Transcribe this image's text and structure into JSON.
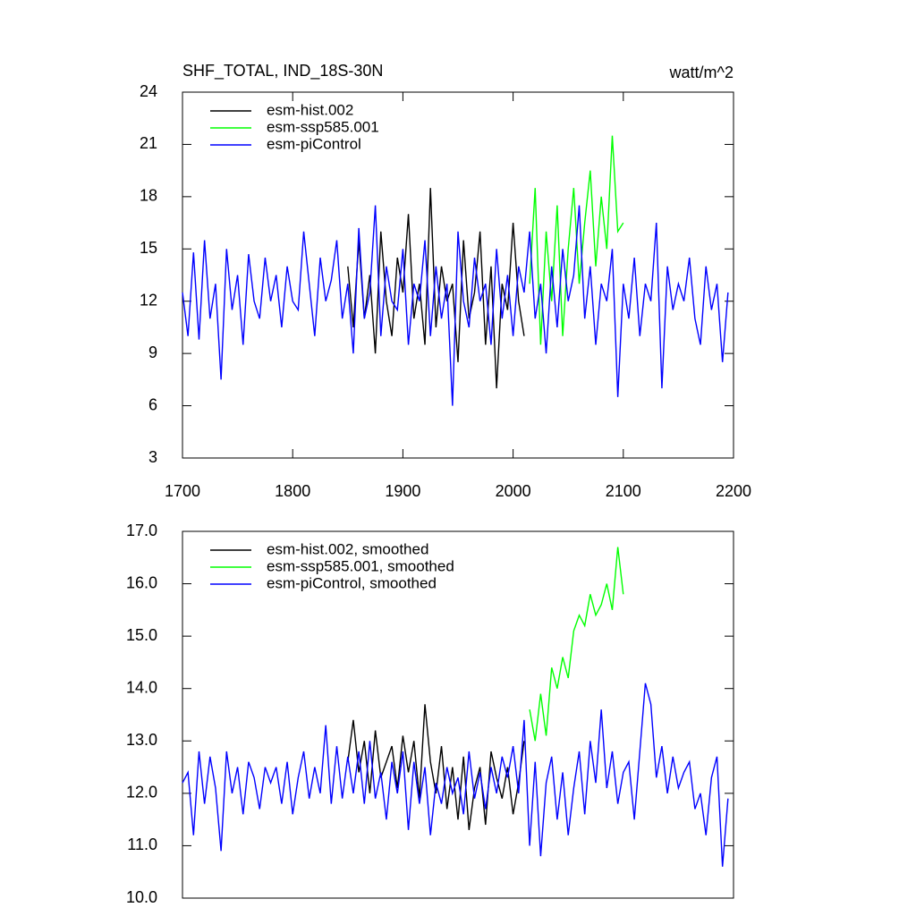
{
  "chart_data": [
    {
      "type": "line",
      "title": "SHF_TOTAL, IND_18S-30N",
      "units": "watt/m^2",
      "xlim": [
        1700,
        2200
      ],
      "xticks": [
        1700,
        1800,
        1900,
        2000,
        2100,
        2200
      ],
      "ylim": [
        3,
        24
      ],
      "yticks": [
        3,
        6,
        9,
        12,
        15,
        18,
        21,
        24
      ],
      "legend": "upper left",
      "series": [
        {
          "name": "esm-hist.002",
          "color": "#000000",
          "x": [
            1850,
            1855,
            1860,
            1865,
            1870,
            1875,
            1880,
            1885,
            1890,
            1895,
            1900,
            1905,
            1910,
            1915,
            1920,
            1925,
            1930,
            1935,
            1940,
            1945,
            1950,
            1955,
            1960,
            1965,
            1970,
            1975,
            1980,
            1985,
            1990,
            1995,
            2000,
            2005,
            2010
          ],
          "values": [
            14,
            10.5,
            15.5,
            11,
            13.5,
            9,
            16,
            12,
            10,
            14.5,
            12.5,
            17,
            11,
            13,
            9.5,
            18.5,
            10.5,
            14,
            12,
            13,
            8.5,
            15.5,
            11,
            12.5,
            16,
            9.5,
            14,
            7,
            13,
            11.5,
            16.5,
            12,
            10
          ]
        },
        {
          "name": "esm-ssp585.001",
          "color": "#00ff00",
          "x": [
            2015,
            2020,
            2025,
            2030,
            2035,
            2040,
            2045,
            2050,
            2055,
            2060,
            2065,
            2070,
            2075,
            2080,
            2085,
            2090,
            2095,
            2100
          ],
          "values": [
            13,
            18.5,
            9.5,
            16,
            12,
            17.5,
            10,
            15,
            18.5,
            13,
            16.5,
            19.5,
            14,
            18,
            15,
            21.5,
            16,
            16.5
          ]
        },
        {
          "name": "esm-piControl",
          "color": "#0000ff",
          "x": [
            1700,
            1705,
            1710,
            1715,
            1720,
            1725,
            1730,
            1735,
            1740,
            1745,
            1750,
            1755,
            1760,
            1765,
            1770,
            1775,
            1780,
            1785,
            1790,
            1795,
            1800,
            1805,
            1810,
            1815,
            1820,
            1825,
            1830,
            1835,
            1840,
            1845,
            1850,
            1855,
            1860,
            1865,
            1870,
            1875,
            1880,
            1885,
            1890,
            1895,
            1900,
            1905,
            1910,
            1915,
            1920,
            1925,
            1930,
            1935,
            1940,
            1945,
            1950,
            1955,
            1960,
            1965,
            1970,
            1975,
            1980,
            1985,
            1990,
            1995,
            2000,
            2005,
            2010,
            2015,
            2020,
            2025,
            2030,
            2035,
            2040,
            2045,
            2050,
            2055,
            2060,
            2065,
            2070,
            2075,
            2080,
            2085,
            2090,
            2095,
            2100,
            2105,
            2110,
            2115,
            2120,
            2125,
            2130,
            2135,
            2140,
            2145,
            2150,
            2155,
            2160,
            2165,
            2170,
            2175,
            2180,
            2185,
            2190,
            2195
          ],
          "values": [
            12.5,
            10,
            14.8,
            9.8,
            15.5,
            11,
            13,
            7.5,
            15,
            11.5,
            13.5,
            9.5,
            14.7,
            12,
            11,
            14.5,
            12,
            13.5,
            10.5,
            14,
            12,
            11.5,
            16,
            13,
            10,
            14.5,
            12,
            13.2,
            15.5,
            11,
            13,
            9,
            16.2,
            11,
            12.5,
            17.5,
            10,
            14,
            12,
            11.5,
            15,
            9.5,
            13,
            12,
            15.5,
            10,
            14,
            11,
            13,
            6,
            16,
            12,
            10.5,
            14.5,
            12,
            13,
            9.5,
            15,
            11,
            13.5,
            10,
            14,
            12.5,
            16,
            11,
            13,
            9,
            14,
            10.5,
            15,
            12,
            13.5,
            17.5,
            11,
            14,
            9.5,
            13,
            12,
            15,
            6.5,
            13,
            11,
            14.5,
            10,
            13,
            12,
            16.5,
            7,
            14,
            11.5,
            13,
            12,
            14.5,
            11,
            9.5,
            14,
            11.5,
            13,
            8.5,
            12.5
          ]
        }
      ]
    },
    {
      "type": "line",
      "xlim": [
        1700,
        2200
      ],
      "ylim": [
        10,
        17
      ],
      "yticks": [
        {
          "value": 10,
          "label": "10.0"
        },
        {
          "value": 11,
          "label": "11.0"
        },
        {
          "value": 12,
          "label": "12.0"
        },
        {
          "value": 13,
          "label": "13.0"
        },
        {
          "value": 14,
          "label": "14.0"
        },
        {
          "value": 15,
          "label": "15.0"
        },
        {
          "value": 16,
          "label": "16.0"
        },
        {
          "value": 17,
          "label": "17.0"
        }
      ],
      "legend": "upper left",
      "series": [
        {
          "name": "esm-hist.002, smoothed",
          "color": "#000000",
          "x": [
            1850,
            1855,
            1860,
            1865,
            1870,
            1875,
            1880,
            1885,
            1890,
            1895,
            1900,
            1905,
            1910,
            1915,
            1920,
            1925,
            1930,
            1935,
            1940,
            1945,
            1950,
            1955,
            1960,
            1965,
            1970,
            1975,
            1980,
            1985,
            1990,
            1995,
            2000,
            2005,
            2010
          ],
          "values": [
            12.6,
            13.4,
            12.4,
            13.0,
            12.0,
            13.2,
            12.3,
            12.6,
            12.9,
            12.1,
            13.1,
            12.4,
            13.0,
            11.9,
            13.7,
            12.6,
            12.0,
            12.9,
            11.7,
            12.5,
            11.5,
            12.7,
            11.3,
            12.1,
            12.5,
            11.4,
            12.8,
            12.3,
            11.9,
            12.5,
            11.6,
            12.2,
            13.0
          ]
        },
        {
          "name": "esm-ssp585.001, smoothed",
          "color": "#00ff00",
          "x": [
            2015,
            2020,
            2025,
            2030,
            2035,
            2040,
            2045,
            2050,
            2055,
            2060,
            2065,
            2070,
            2075,
            2080,
            2085,
            2090,
            2095,
            2100
          ],
          "values": [
            13.6,
            13.0,
            13.9,
            13.1,
            14.4,
            14.0,
            14.6,
            14.2,
            15.1,
            15.4,
            15.2,
            15.8,
            15.4,
            15.6,
            16.0,
            15.5,
            16.7,
            15.8
          ]
        },
        {
          "name": "esm-piControl, smoothed",
          "color": "#0000ff",
          "x": [
            1700,
            1705,
            1710,
            1715,
            1720,
            1725,
            1730,
            1735,
            1740,
            1745,
            1750,
            1755,
            1760,
            1765,
            1770,
            1775,
            1780,
            1785,
            1790,
            1795,
            1800,
            1805,
            1810,
            1815,
            1820,
            1825,
            1830,
            1835,
            1840,
            1845,
            1850,
            1855,
            1860,
            1865,
            1870,
            1875,
            1880,
            1885,
            1890,
            1895,
            1900,
            1905,
            1910,
            1915,
            1920,
            1925,
            1930,
            1935,
            1940,
            1945,
            1950,
            1955,
            1960,
            1965,
            1970,
            1975,
            1980,
            1985,
            1990,
            1995,
            2000,
            2005,
            2010,
            2015,
            2020,
            2025,
            2030,
            2035,
            2040,
            2045,
            2050,
            2055,
            2060,
            2065,
            2070,
            2075,
            2080,
            2085,
            2090,
            2095,
            2100,
            2105,
            2110,
            2115,
            2120,
            2125,
            2130,
            2135,
            2140,
            2145,
            2150,
            2155,
            2160,
            2165,
            2170,
            2175,
            2180,
            2185,
            2190,
            2195
          ],
          "values": [
            12.2,
            12.4,
            11.2,
            12.8,
            11.8,
            12.7,
            12.1,
            10.9,
            12.8,
            12.0,
            12.5,
            11.6,
            12.6,
            12.3,
            11.7,
            12.5,
            12.2,
            12.5,
            11.8,
            12.6,
            11.6,
            12.3,
            12.8,
            11.9,
            12.5,
            12.0,
            13.3,
            11.8,
            12.9,
            11.9,
            12.7,
            12.0,
            12.8,
            11.8,
            13.0,
            11.9,
            12.4,
            11.5,
            12.6,
            12.0,
            12.8,
            11.3,
            12.6,
            11.8,
            12.5,
            11.2,
            12.2,
            11.8,
            12.5,
            12.0,
            12.3,
            11.6,
            12.8,
            11.9,
            12.4,
            11.7,
            12.5,
            12.0,
            12.7,
            12.3,
            12.9,
            12.0,
            13.4,
            11.0,
            12.6,
            10.8,
            12.2,
            12.7,
            11.5,
            12.4,
            11.2,
            12.1,
            12.8,
            11.6,
            13.0,
            12.2,
            13.6,
            12.1,
            12.8,
            11.8,
            12.4,
            12.6,
            11.5,
            12.8,
            14.1,
            13.7,
            12.3,
            12.9,
            12.0,
            12.7,
            12.1,
            12.4,
            12.6,
            11.7,
            12.0,
            11.2,
            12.3,
            12.7,
            10.6,
            11.9
          ]
        }
      ]
    }
  ]
}
